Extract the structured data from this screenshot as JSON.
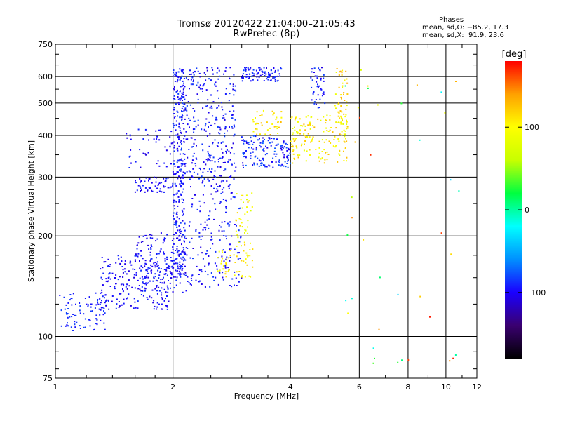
{
  "header": {
    "title_line1": "Tromsø 20120422 21:04:00–21:05:43",
    "title_line2": "RwPretec (8p)"
  },
  "stats": {
    "heading": "Phases",
    "line1": "mean, sd,O: −85.2, 17.3",
    "line2": "mean, sd,X:  91.9, 23.6"
  },
  "colorbar": {
    "label": "[deg]",
    "min": -180,
    "max": 180,
    "ticks": [
      {
        "value": 100,
        "label": "100"
      },
      {
        "value": 0,
        "label": "0"
      },
      {
        "value": -100,
        "label": "−100"
      }
    ],
    "stops": [
      "#000000",
      "#3a0070",
      "#1a00ff",
      "#0090ff",
      "#00ffff",
      "#00ff40",
      "#c8ff00",
      "#ffff00",
      "#ffa000",
      "#ff0000"
    ]
  },
  "chart_data": {
    "type": "scatter",
    "title": "Tromsø 20120422 21:04:00–21:05:43",
    "subtitle": "RwPretec (8p)",
    "xlabel": "Frequency [MHz]",
    "ylabel": "Stationary phase Virtual Height [km]",
    "xscale": "log",
    "yscale": "log",
    "xlim": [
      1,
      12
    ],
    "ylim": [
      75,
      750
    ],
    "xticks": [
      {
        "value": 1,
        "label": "1"
      },
      {
        "value": 2,
        "label": "2"
      },
      {
        "value": 4,
        "label": "4"
      },
      {
        "value": 6,
        "label": "6"
      },
      {
        "value": 8,
        "label": "8"
      },
      {
        "value": 10,
        "label": "10"
      },
      {
        "value": 12,
        "label": "12"
      }
    ],
    "yticks": [
      {
        "value": 75,
        "label": "75"
      },
      {
        "value": 100,
        "label": "100"
      },
      {
        "value": 200,
        "label": "200"
      },
      {
        "value": 300,
        "label": "300"
      },
      {
        "value": 400,
        "label": "400"
      },
      {
        "value": 500,
        "label": "500"
      },
      {
        "value": 600,
        "label": "600"
      },
      {
        "value": 750,
        "label": "750"
      }
    ],
    "grid": true,
    "color_variable": "phase [deg]",
    "point_clusters": [
      {
        "f": [
          1.0,
          1.35
        ],
        "h": [
          104,
          135
        ],
        "phase": [
          -100,
          -80
        ],
        "n": 90
      },
      {
        "f": [
          1.3,
          2.0
        ],
        "h": [
          120,
          175
        ],
        "phase": [
          -110,
          -85
        ],
        "n": 220
      },
      {
        "f": [
          1.6,
          2.2
        ],
        "h": [
          135,
          205
        ],
        "phase": [
          -110,
          -85
        ],
        "n": 160
      },
      {
        "f": [
          1.6,
          2.0
        ],
        "h": [
          270,
          300
        ],
        "phase": [
          -110,
          -85
        ],
        "n": 60
      },
      {
        "f": [
          1.5,
          2.0
        ],
        "h": [
          320,
          420
        ],
        "phase": [
          -110,
          -85
        ],
        "n": 45
      },
      {
        "f": [
          2.0,
          2.15
        ],
        "h": [
          150,
          640
        ],
        "phase": [
          -110,
          -80
        ],
        "n": 320
      },
      {
        "f": [
          2.15,
          2.9
        ],
        "h": [
          270,
          640
        ],
        "phase": [
          -110,
          -80
        ],
        "n": 300
      },
      {
        "f": [
          2.2,
          3.0
        ],
        "h": [
          140,
          270
        ],
        "phase": [
          -110,
          -80
        ],
        "n": 160
      },
      {
        "f": [
          2.6,
          3.2
        ],
        "h": [
          150,
          185
        ],
        "phase": [
          90,
          120
        ],
        "n": 50
      },
      {
        "f": [
          2.9,
          3.2
        ],
        "h": [
          185,
          270
        ],
        "phase": [
          70,
          130
        ],
        "n": 40
      },
      {
        "f": [
          3.0,
          4.0
        ],
        "h": [
          320,
          400
        ],
        "phase": [
          -110,
          -70
        ],
        "n": 140
      },
      {
        "f": [
          3.0,
          3.8
        ],
        "h": [
          580,
          640
        ],
        "phase": [
          -110,
          -80
        ],
        "n": 90
      },
      {
        "f": [
          3.2,
          3.8
        ],
        "h": [
          400,
          480
        ],
        "phase": [
          90,
          130
        ],
        "n": 40
      },
      {
        "f": [
          4.0,
          5.6
        ],
        "h": [
          330,
          460
        ],
        "phase": [
          80,
          130
        ],
        "n": 150
      },
      {
        "f": [
          5.2,
          5.6
        ],
        "h": [
          400,
          640
        ],
        "phase": [
          80,
          140
        ],
        "n": 60
      },
      {
        "f": [
          4.5,
          4.9
        ],
        "h": [
          480,
          640
        ],
        "phase": [
          -110,
          -80
        ],
        "n": 45
      },
      {
        "f": [
          5.5,
          11.0
        ],
        "h": [
          80,
          640
        ],
        "phase": [
          -40,
          180
        ],
        "n": 40
      }
    ]
  }
}
